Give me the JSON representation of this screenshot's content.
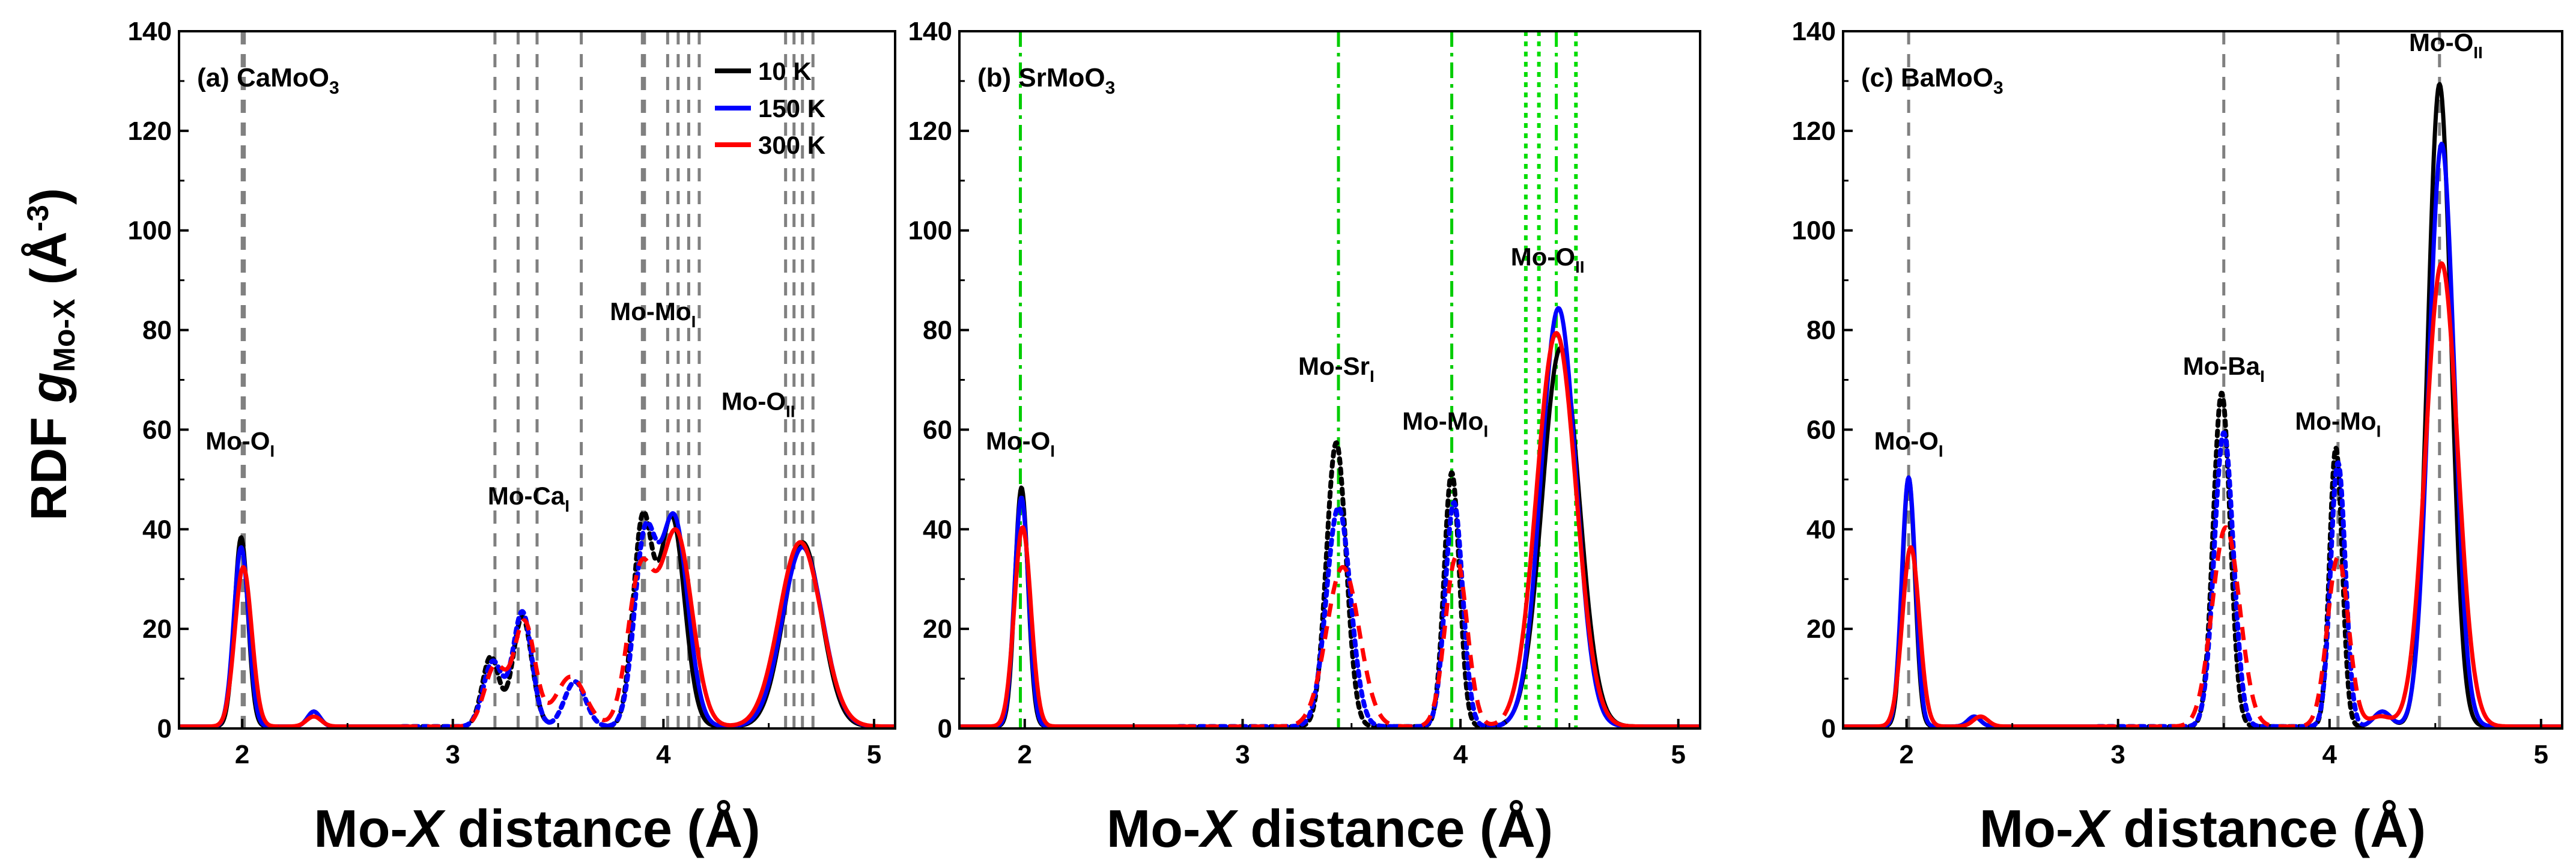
{
  "figure": {
    "ylabel_main": "RDF ",
    "ylabel_g": "g",
    "ylabel_sub": "Mo-X",
    "ylabel_unit": " (Å",
    "ylabel_exp": "-3",
    "ylabel_close": ")",
    "xlabel_pre": "Mo-",
    "xlabel_italic": "X",
    "xlabel_post": " distance (Å)"
  },
  "legend": [
    {
      "label": "10 K",
      "color": "#000000"
    },
    {
      "label": "150 K",
      "color": "#0000ff"
    },
    {
      "label": "300 K",
      "color": "#ff0000"
    }
  ],
  "chart_data": [
    {
      "type": "line",
      "panel_label": "(a) CaMoO",
      "panel_sub": "3",
      "xlim": [
        1.7,
        5.1
      ],
      "ylim": [
        0,
        140
      ],
      "xticks": [
        2,
        3,
        4,
        5
      ],
      "yticks": [
        0,
        20,
        40,
        60,
        80,
        100,
        120,
        140
      ],
      "vlines": [
        {
          "x": 2.0,
          "color": "#808080",
          "style": "dash"
        },
        {
          "x": 2.01,
          "color": "#808080",
          "style": "dash"
        },
        {
          "x": 3.2,
          "color": "#808080",
          "style": "dash"
        },
        {
          "x": 3.31,
          "color": "#808080",
          "style": "dash"
        },
        {
          "x": 3.4,
          "color": "#808080",
          "style": "dash"
        },
        {
          "x": 3.61,
          "color": "#808080",
          "style": "dash"
        },
        {
          "x": 3.9,
          "color": "#808080",
          "style": "dash"
        },
        {
          "x": 3.91,
          "color": "#808080",
          "style": "dash"
        },
        {
          "x": 4.02,
          "color": "#808080",
          "style": "dash"
        },
        {
          "x": 4.07,
          "color": "#808080",
          "style": "dash"
        },
        {
          "x": 4.12,
          "color": "#808080",
          "style": "dash"
        },
        {
          "x": 4.17,
          "color": "#808080",
          "style": "dash"
        },
        {
          "x": 4.58,
          "color": "#808080",
          "style": "dash"
        },
        {
          "x": 4.62,
          "color": "#808080",
          "style": "dash"
        },
        {
          "x": 4.66,
          "color": "#808080",
          "style": "dash"
        },
        {
          "x": 4.71,
          "color": "#808080",
          "style": "dash"
        }
      ],
      "annotations": [
        {
          "text": "Mo-O",
          "sub": "I",
          "x": 1.99,
          "y": 56
        },
        {
          "text": "Mo-Ca",
          "sub": "I",
          "x": 3.36,
          "y": 45
        },
        {
          "text": "Mo-Mo",
          "sub": "I",
          "x": 3.95,
          "y": 82
        },
        {
          "text": "Mo-O",
          "sub": "II",
          "x": 4.45,
          "y": 64
        }
      ],
      "series": [
        {
          "name": "10 K",
          "color": "#000000",
          "peaks": [
            {
              "c": 1.995,
              "a": 38,
              "w": 0.032,
              "dash": "solid"
            },
            {
              "c": 2.34,
              "a": 3,
              "w": 0.03,
              "dash": "solid"
            },
            {
              "c": 3.18,
              "a": 14,
              "w": 0.04,
              "dash": "dot"
            },
            {
              "c": 3.33,
              "a": 22,
              "w": 0.045,
              "dash": "dot"
            },
            {
              "c": 3.58,
              "a": 9,
              "w": 0.05,
              "dash": "dot"
            },
            {
              "c": 3.9,
              "a": 40,
              "w": 0.045,
              "dash": "dot"
            },
            {
              "c": 4.04,
              "a": 42,
              "w": 0.06,
              "dash": "solid"
            },
            {
              "c": 4.66,
              "a": 37,
              "w": 0.09,
              "dash": "solid"
            }
          ]
        },
        {
          "name": "150 K",
          "color": "#0000ff",
          "peaks": [
            {
              "c": 1.995,
              "a": 36,
              "w": 0.035,
              "dash": "solid"
            },
            {
              "c": 2.34,
              "a": 3,
              "w": 0.03,
              "dash": "solid"
            },
            {
              "c": 3.19,
              "a": 13,
              "w": 0.045,
              "dash": "dot"
            },
            {
              "c": 3.33,
              "a": 23,
              "w": 0.045,
              "dash": "dot"
            },
            {
              "c": 3.58,
              "a": 9,
              "w": 0.05,
              "dash": "dot"
            },
            {
              "c": 3.91,
              "a": 36,
              "w": 0.05,
              "dash": "dot"
            },
            {
              "c": 4.05,
              "a": 42,
              "w": 0.065,
              "dash": "solid"
            },
            {
              "c": 4.66,
              "a": 36,
              "w": 0.095,
              "dash": "solid"
            }
          ]
        },
        {
          "name": "300 K",
          "color": "#ff0000",
          "peaks": [
            {
              "c": 2.005,
              "a": 32,
              "w": 0.04,
              "dash": "solid"
            },
            {
              "c": 2.34,
              "a": 2,
              "w": 0.035,
              "dash": "solid"
            },
            {
              "c": 3.2,
              "a": 12,
              "w": 0.05,
              "dash": "dash"
            },
            {
              "c": 3.34,
              "a": 21,
              "w": 0.05,
              "dash": "dash"
            },
            {
              "c": 3.56,
              "a": 10,
              "w": 0.07,
              "dash": "dash"
            },
            {
              "c": 3.89,
              "a": 30,
              "w": 0.06,
              "dash": "dash"
            },
            {
              "c": 4.06,
              "a": 39,
              "w": 0.075,
              "dash": "solid"
            },
            {
              "c": 4.65,
              "a": 37,
              "w": 0.1,
              "dash": "solid"
            }
          ]
        }
      ]
    },
    {
      "type": "line",
      "panel_label": "(b) SrMoO",
      "panel_sub": "3",
      "xlim": [
        1.7,
        5.1
      ],
      "ylim": [
        0,
        140
      ],
      "xticks": [
        2,
        3,
        4,
        5
      ],
      "yticks": [
        0,
        20,
        40,
        60,
        80,
        100,
        120,
        140
      ],
      "vlines": [
        {
          "x": 1.98,
          "color": "#00cc00",
          "style": "dashdot"
        },
        {
          "x": 3.44,
          "color": "#00cc00",
          "style": "dashdot"
        },
        {
          "x": 3.96,
          "color": "#00cc00",
          "style": "dashdot"
        },
        {
          "x": 4.3,
          "color": "#00dd00",
          "style": "dot"
        },
        {
          "x": 4.36,
          "color": "#00dd00",
          "style": "dot"
        },
        {
          "x": 4.44,
          "color": "#00dd00",
          "style": "dashdot"
        },
        {
          "x": 4.53,
          "color": "#00dd00",
          "style": "dot"
        }
      ],
      "annotations": [
        {
          "text": "Mo-O",
          "sub": "I",
          "x": 1.98,
          "y": 56
        },
        {
          "text": "Mo-Sr",
          "sub": "I",
          "x": 3.43,
          "y": 71
        },
        {
          "text": "Mo-Mo",
          "sub": "I",
          "x": 3.93,
          "y": 60
        },
        {
          "text": "Mo-O",
          "sub": "II",
          "x": 4.4,
          "y": 93
        }
      ],
      "series": [
        {
          "name": "10 K",
          "color": "#000000",
          "peaks": [
            {
              "c": 1.985,
              "a": 48,
              "w": 0.03,
              "dash": "solid"
            },
            {
              "c": 3.43,
              "a": 57,
              "w": 0.045,
              "dash": "dot"
            },
            {
              "c": 3.96,
              "a": 51,
              "w": 0.035,
              "dash": "dot"
            },
            {
              "c": 4.46,
              "a": 76,
              "w": 0.085,
              "dash": "solid"
            }
          ]
        },
        {
          "name": "150 K",
          "color": "#0000ff",
          "peaks": [
            {
              "c": 1.985,
              "a": 46,
              "w": 0.032,
              "dash": "solid"
            },
            {
              "c": 3.44,
              "a": 44,
              "w": 0.055,
              "dash": "dot"
            },
            {
              "c": 3.97,
              "a": 45,
              "w": 0.04,
              "dash": "dot"
            },
            {
              "c": 4.45,
              "a": 84,
              "w": 0.08,
              "dash": "solid"
            }
          ]
        },
        {
          "name": "300 K",
          "color": "#ff0000",
          "peaks": [
            {
              "c": 1.99,
              "a": 40,
              "w": 0.038,
              "dash": "solid"
            },
            {
              "c": 3.46,
              "a": 32,
              "w": 0.075,
              "dash": "dash"
            },
            {
              "c": 3.98,
              "a": 34,
              "w": 0.05,
              "dash": "dash"
            },
            {
              "c": 4.44,
              "a": 79,
              "w": 0.09,
              "dash": "solid"
            }
          ]
        }
      ]
    },
    {
      "type": "line",
      "panel_label": "(c) BaMoO",
      "panel_sub": "3",
      "xlim": [
        1.7,
        5.1
      ],
      "ylim": [
        0,
        140
      ],
      "xticks": [
        2,
        3,
        4,
        5
      ],
      "yticks": [
        0,
        20,
        40,
        60,
        80,
        100,
        120,
        140
      ],
      "vlines": [
        {
          "x": 2.01,
          "color": "#808080",
          "style": "dash"
        },
        {
          "x": 3.5,
          "color": "#808080",
          "style": "dash"
        },
        {
          "x": 4.04,
          "color": "#808080",
          "style": "dash"
        },
        {
          "x": 4.52,
          "color": "#808080",
          "style": "dash"
        }
      ],
      "annotations": [
        {
          "text": "Mo-O",
          "sub": "I",
          "x": 2.01,
          "y": 56
        },
        {
          "text": "Mo-Ba",
          "sub": "I",
          "x": 3.5,
          "y": 71
        },
        {
          "text": "Mo-Mo",
          "sub": "I",
          "x": 4.04,
          "y": 60
        },
        {
          "text": "Mo-O",
          "sub": "II",
          "x": 4.55,
          "y": 136
        }
      ],
      "series": [
        {
          "name": "10 K",
          "color": "#000000",
          "peaks": [
            {
              "c": 2.01,
              "a": 50,
              "w": 0.03,
              "dash": "solid"
            },
            {
              "c": 2.32,
              "a": 2,
              "w": 0.03,
              "dash": "solid"
            },
            {
              "c": 3.49,
              "a": 67,
              "w": 0.04,
              "dash": "dot"
            },
            {
              "c": 4.03,
              "a": 56,
              "w": 0.03,
              "dash": "dot"
            },
            {
              "c": 4.25,
              "a": 3,
              "w": 0.04,
              "dash": "solid"
            },
            {
              "c": 4.52,
              "a": 129,
              "w": 0.055,
              "dash": "solid"
            }
          ]
        },
        {
          "name": "150 K",
          "color": "#0000ff",
          "peaks": [
            {
              "c": 2.01,
              "a": 50,
              "w": 0.032,
              "dash": "solid"
            },
            {
              "c": 2.32,
              "a": 2,
              "w": 0.03,
              "dash": "solid"
            },
            {
              "c": 3.5,
              "a": 59,
              "w": 0.045,
              "dash": "dot"
            },
            {
              "c": 4.04,
              "a": 53,
              "w": 0.035,
              "dash": "dot"
            },
            {
              "c": 4.25,
              "a": 3,
              "w": 0.04,
              "dash": "solid"
            },
            {
              "c": 4.53,
              "a": 117,
              "w": 0.06,
              "dash": "solid"
            }
          ]
        },
        {
          "name": "300 K",
          "color": "#ff0000",
          "peaks": [
            {
              "c": 2.02,
              "a": 36,
              "w": 0.04,
              "dash": "solid"
            },
            {
              "c": 2.35,
              "a": 2,
              "w": 0.035,
              "dash": "solid"
            },
            {
              "c": 3.51,
              "a": 40,
              "w": 0.065,
              "dash": "dash"
            },
            {
              "c": 4.04,
              "a": 34,
              "w": 0.05,
              "dash": "dash"
            },
            {
              "c": 4.24,
              "a": 2,
              "w": 0.05,
              "dash": "solid"
            },
            {
              "c": 4.53,
              "a": 93,
              "w": 0.075,
              "dash": "solid"
            }
          ]
        }
      ]
    }
  ]
}
